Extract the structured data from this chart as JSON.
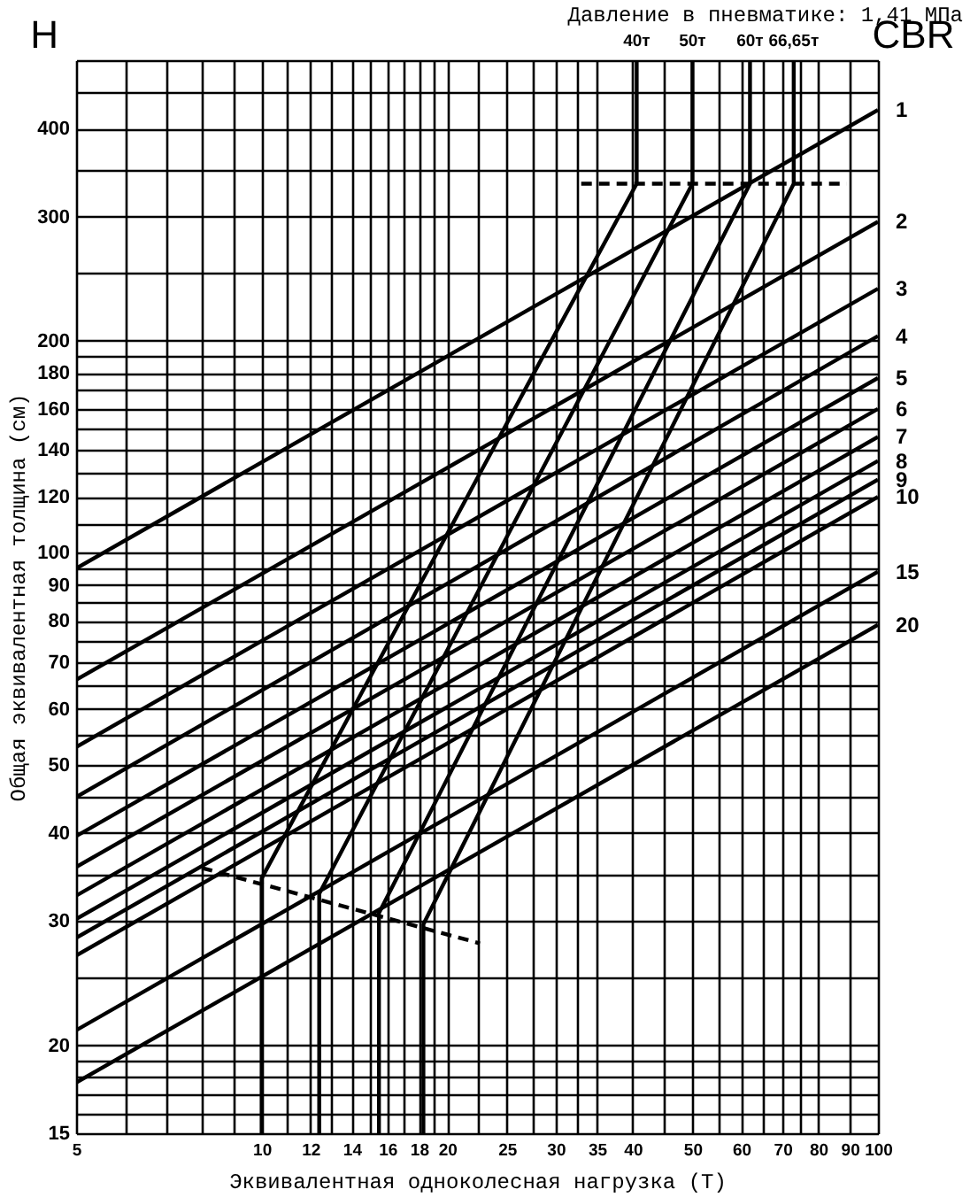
{
  "chart_data": {
    "type": "line",
    "subtitle": "Давление в пневматике: 1,41 МПа",
    "xlabel": "Эквивалентная одноколесная нагрузка (Т)",
    "ylabel": "Общая эквивалентная толщина (см)",
    "annotations": [
      "H",
      "CBR"
    ],
    "log": "xy",
    "xlim": [
      5,
      100
    ],
    "ylim": [
      15,
      500
    ],
    "xticks": [
      5,
      {
        "value": 6,
        "label": null
      },
      {
        "value": 7,
        "label": null
      },
      {
        "value": 8,
        "label": null
      },
      {
        "value": 9,
        "label": null
      },
      10,
      {
        "value": 11,
        "label": null
      },
      12,
      {
        "value": 13,
        "label": null
      },
      14,
      {
        "value": 15,
        "label": null
      },
      16,
      {
        "value": 17,
        "label": null
      },
      18,
      {
        "value": 19,
        "label": null
      },
      20,
      {
        "value": 22.5,
        "label": null
      },
      25,
      {
        "value": 27.5,
        "label": null
      },
      30,
      {
        "value": 32.5,
        "label": null
      },
      35,
      40,
      {
        "value": 45,
        "label": null
      },
      50,
      {
        "value": 55,
        "label": null
      },
      60,
      {
        "value": 65,
        "label": null
      },
      70,
      {
        "value": 75,
        "label": null
      },
      80,
      90,
      100
    ],
    "yticks": [
      15,
      {
        "value": 16,
        "label": null
      },
      {
        "value": 17,
        "label": null
      },
      {
        "value": 18,
        "label": null
      },
      {
        "value": 19,
        "label": null
      },
      20,
      {
        "value": 25,
        "label": null
      },
      30,
      {
        "value": 35,
        "label": null
      },
      40,
      {
        "value": 45,
        "label": null
      },
      50,
      {
        "value": 55,
        "label": null
      },
      60,
      {
        "value": 65,
        "label": null
      },
      70,
      {
        "value": 75,
        "label": null
      },
      80,
      {
        "value": 85,
        "label": null
      },
      90,
      {
        "value": 95,
        "label": null
      },
      100,
      {
        "value": 110,
        "label": null
      },
      120,
      {
        "value": 130,
        "label": null
      },
      140,
      {
        "value": 150,
        "label": null
      },
      160,
      {
        "value": 170,
        "label": null
      },
      180,
      {
        "value": 190,
        "label": null
      },
      200,
      {
        "value": 250,
        "label": null
      },
      300,
      {
        "value": 350,
        "label": null
      },
      400,
      {
        "value": 450,
        "label": null
      },
      {
        "value": 500,
        "label": null
      }
    ],
    "grid": true,
    "line_style": "solid",
    "series": [
      {
        "name": "1",
        "color": "#000000",
        "x": [
          5,
          100
        ],
        "values": [
          95,
          425
        ]
      },
      {
        "name": "2",
        "color": "#000000",
        "x": [
          5,
          100
        ],
        "values": [
          66,
          295
        ]
      },
      {
        "name": "3",
        "color": "#000000",
        "x": [
          5,
          100
        ],
        "values": [
          53,
          237
        ]
      },
      {
        "name": "4",
        "color": "#000000",
        "x": [
          5,
          100
        ],
        "values": [
          45,
          203
        ]
      },
      {
        "name": "5",
        "color": "#000000",
        "x": [
          5,
          100
        ],
        "values": [
          39.6,
          177
        ]
      },
      {
        "name": "6",
        "color": "#000000",
        "x": [
          5,
          100
        ],
        "values": [
          35.8,
          160
        ]
      },
      {
        "name": "7",
        "color": "#000000",
        "x": [
          5,
          100
        ],
        "values": [
          32.6,
          146
        ]
      },
      {
        "name": "8",
        "color": "#000000",
        "x": [
          5,
          100
        ],
        "values": [
          30.2,
          135
        ]
      },
      {
        "name": "9",
        "color": "#000000",
        "x": [
          5,
          100
        ],
        "values": [
          28.4,
          127
        ]
      },
      {
        "name": "10",
        "color": "#000000",
        "x": [
          5,
          100
        ],
        "values": [
          26.8,
          120
        ]
      },
      {
        "name": "15",
        "color": "#000000",
        "x": [
          5,
          100
        ],
        "values": [
          21,
          94
        ]
      },
      {
        "name": "20",
        "color": "#000000",
        "x": [
          5,
          100
        ],
        "values": [
          17.7,
          79
        ]
      },
      {
        "name": "40т",
        "color": "#000000",
        "x": [
          10,
          10,
          28.7,
          40.6,
          40.6
        ],
        "values": [
          15,
          34.5,
          191,
          334,
          500
        ]
      },
      {
        "name": "50т",
        "color": "#000000",
        "x": [
          12.4,
          12.4,
          50,
          50
        ],
        "values": [
          15,
          32.8,
          334,
          500
        ]
      },
      {
        "name": "60т",
        "color": "#000000",
        "x": [
          15.5,
          15.5,
          62,
          62
        ],
        "values": [
          15,
          30.8,
          334,
          500
        ]
      },
      {
        "name": "66,65т",
        "color": "#000000",
        "x": [
          18.3,
          18.3,
          73,
          73
        ],
        "values": [
          15,
          29.7,
          334,
          500
        ]
      },
      {
        "color": "#000000",
        "line_style": "dashed",
        "x": [
          33,
          89
        ],
        "values": [
          334,
          334
        ]
      },
      {
        "color": "#000000",
        "line_style": "dashed",
        "x": [
          8,
          22.6
        ],
        "values": [
          35.7,
          27.9
        ]
      }
    ]
  }
}
